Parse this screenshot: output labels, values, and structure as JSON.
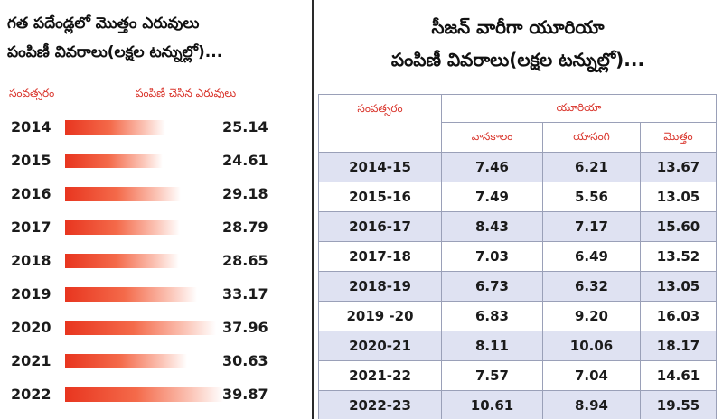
{
  "left_panel": {
    "title_line1": "గత పదేండ్లలో మొత్తం ఎరువులు",
    "title_line2": "పంపిణీ వివరాలు(లక్షల టన్నుల్లో)...",
    "col_year": "సంవత్సరం",
    "col_value": "పంపిణీ చేసిన ఎరువులు"
  },
  "right_panel": {
    "title_line1": "సీజన్ వారీగా యూరియా",
    "title_line2": "పంపిణీ వివరాలు(లక్షల టన్నుల్లో)...",
    "col_year": "సంవత్సరం",
    "col_group": "యూరియా",
    "col_kharif": "వానకాలం",
    "col_rabi": "యాసంగి",
    "col_total": "మొత్తం"
  },
  "chart_data": [
    {
      "type": "bar",
      "orientation": "horizontal",
      "title": "గత పదేండ్లలో మొత్తం ఎరువులు పంపిణీ వివరాలు(లక్షల టన్నుల్లో)...",
      "xlabel": "పంపిణీ చేసిన ఎరువులు",
      "ylabel": "సంవత్సరం",
      "categories": [
        "2014",
        "2015",
        "2016",
        "2017",
        "2018",
        "2019",
        "2020",
        "2021",
        "2022"
      ],
      "values": [
        "25.14",
        "24.61",
        "29.18",
        "28.79",
        "28.65",
        "33.17",
        "37.96",
        "30.63",
        "39.87"
      ],
      "xlim": [
        0,
        40
      ],
      "grid": false
    },
    {
      "type": "table",
      "title": "సీజన్ వారీగా యూరియా పంపిణీ వివరాలు(లక్షల టన్నుల్లో)...",
      "columns": [
        "సంవత్సరం",
        "వానకాలం",
        "యాసంగి",
        "మొత్తం"
      ],
      "rows": [
        {
          "year": "2014-15",
          "kharif": "7.46",
          "rabi": "6.21",
          "total": "13.67"
        },
        {
          "year": "2015-16",
          "kharif": "7.49",
          "rabi": "5.56",
          "total": "13.05"
        },
        {
          "year": "2016-17",
          "kharif": "8.43",
          "rabi": "7.17",
          "total": "15.60"
        },
        {
          "year": "2017-18",
          "kharif": "7.03",
          "rabi": "6.49",
          "total": "13.52"
        },
        {
          "year": "2018-19",
          "kharif": "6.73",
          "rabi": "6.32",
          "total": "13.05"
        },
        {
          "year": "2019 -20",
          "kharif": "6.83",
          "rabi": "9.20",
          "total": "16.03"
        },
        {
          "year": "2020-21",
          "kharif": "8.11",
          "rabi": "10.06",
          "total": "18.17"
        },
        {
          "year": "2021-22",
          "kharif": "7.57",
          "rabi": "7.04",
          "total": "14.61"
        },
        {
          "year": "2022-23",
          "kharif": "10.61",
          "rabi": "8.94",
          "total": "19.55"
        }
      ]
    }
  ]
}
